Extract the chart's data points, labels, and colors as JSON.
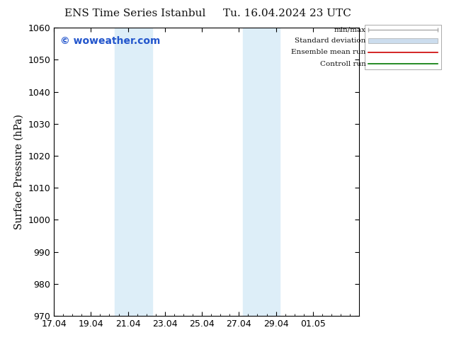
{
  "title": "ENS Time Series Istanbul",
  "title2": "Tu. 16.04.2024 23 UTC",
  "ylabel": "Surface Pressure (hPa)",
  "ylim": [
    970,
    1060
  ],
  "yticks": [
    970,
    980,
    990,
    1000,
    1010,
    1020,
    1030,
    1040,
    1050,
    1060
  ],
  "xlim_start": 0.0,
  "xlim_end": 16.5,
  "xtick_labels": [
    "17.04",
    "19.04",
    "21.04",
    "23.04",
    "25.04",
    "27.04",
    "29.04",
    "01.05"
  ],
  "xtick_positions": [
    0,
    2,
    4,
    6,
    8,
    10,
    12,
    14
  ],
  "shaded_bands": [
    {
      "x_start": 3.3,
      "x_end": 5.3,
      "color": "#ddeef8"
    },
    {
      "x_start": 10.2,
      "x_end": 12.2,
      "color": "#ddeef8"
    }
  ],
  "watermark": "© woweather.com",
  "watermark_color": "#2255cc",
  "bg_color": "#ffffff",
  "plot_bg_color": "#ffffff",
  "legend_items": [
    {
      "label": "min/max",
      "color": "#aaaaaa",
      "type": "line_with_ticks"
    },
    {
      "label": "Standard deviation",
      "color": "#ccddee",
      "type": "fill"
    },
    {
      "label": "Ensemble mean run",
      "color": "#cc0000",
      "type": "line"
    },
    {
      "label": "Controll run",
      "color": "#007700",
      "type": "line"
    }
  ],
  "tick_color": "#000000",
  "axis_color": "#000000",
  "font_size": 9,
  "title_font_size": 11
}
